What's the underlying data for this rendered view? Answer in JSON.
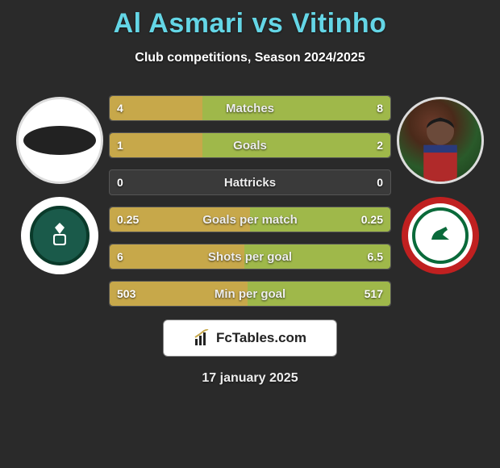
{
  "title": "Al Asmari vs Vitinho",
  "subtitle": "Club competitions, Season 2024/2025",
  "date": "17 january 2025",
  "branding_text": "FcTables.com",
  "player_left": {
    "name": "Al Asmari",
    "club_name": "Al Ahli",
    "avatar_type": "placeholder"
  },
  "player_right": {
    "name": "Vitinho",
    "club_name": "Ettifaq",
    "avatar_type": "photo"
  },
  "bar_colors": {
    "left": "#c7a84a",
    "right": "#9fb84a",
    "track": "#3a3a3a",
    "border": "#555"
  },
  "text_colors": {
    "title": "#64d6e6",
    "body": "#ffffff"
  },
  "background_color": "#2a2a2a",
  "rows": [
    {
      "label": "Matches",
      "left": "4",
      "right": "8",
      "left_pct": 33,
      "right_pct": 67
    },
    {
      "label": "Goals",
      "left": "1",
      "right": "2",
      "left_pct": 33,
      "right_pct": 67
    },
    {
      "label": "Hattricks",
      "left": "0",
      "right": "0",
      "left_pct": 0,
      "right_pct": 0
    },
    {
      "label": "Goals per match",
      "left": "0.25",
      "right": "0.25",
      "left_pct": 50,
      "right_pct": 50
    },
    {
      "label": "Shots per goal",
      "left": "6",
      "right": "6.5",
      "left_pct": 48,
      "right_pct": 52
    },
    {
      "label": "Min per goal",
      "left": "503",
      "right": "517",
      "left_pct": 49,
      "right_pct": 51
    }
  ]
}
